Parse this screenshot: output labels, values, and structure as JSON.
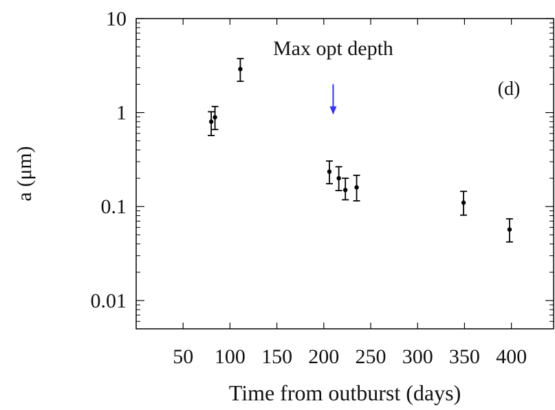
{
  "chart_data": {
    "type": "scatter",
    "title": "",
    "xlabel": "Time from outburst (days)",
    "ylabel": "a (μm)",
    "y_scale": "log",
    "xlim": [
      0,
      445
    ],
    "ylim": [
      0.005,
      10
    ],
    "grid": false,
    "legend": "none",
    "x_ticks": [
      50,
      100,
      150,
      200,
      250,
      300,
      350,
      400
    ],
    "x_tick_labels": [
      "50",
      "100",
      "150",
      "200",
      "250",
      "300",
      "350",
      "400"
    ],
    "y_ticks": [
      0.01,
      0.1,
      1,
      10
    ],
    "y_tick_labels": [
      "0.01",
      "0.1",
      "1",
      "10"
    ],
    "panel_label": "(d)",
    "series": [
      {
        "points": [
          {
            "x": 80,
            "y": 0.8,
            "y_low": 0.57,
            "y_high": 1.02
          },
          {
            "x": 84,
            "y": 0.89,
            "y_low": 0.66,
            "y_high": 1.16
          },
          {
            "x": 111,
            "y": 2.9,
            "y_low": 2.15,
            "y_high": 3.75
          },
          {
            "x": 206,
            "y": 0.235,
            "y_low": 0.175,
            "y_high": 0.305
          },
          {
            "x": 216,
            "y": 0.2,
            "y_low": 0.148,
            "y_high": 0.265
          },
          {
            "x": 223,
            "y": 0.15,
            "y_low": 0.118,
            "y_high": 0.2
          },
          {
            "x": 235,
            "y": 0.16,
            "y_low": 0.115,
            "y_high": 0.215
          },
          {
            "x": 349,
            "y": 0.11,
            "y_low": 0.081,
            "y_high": 0.145
          },
          {
            "x": 398,
            "y": 0.057,
            "y_low": 0.042,
            "y_high": 0.074
          }
        ],
        "color": "#000000"
      }
    ],
    "annotations": [
      {
        "text": "Max opt depth",
        "arrow_x": 210,
        "arrow_y_top": 2.0,
        "arrow_y_bottom": 0.95,
        "arrow_color": "#3333ff"
      }
    ]
  }
}
